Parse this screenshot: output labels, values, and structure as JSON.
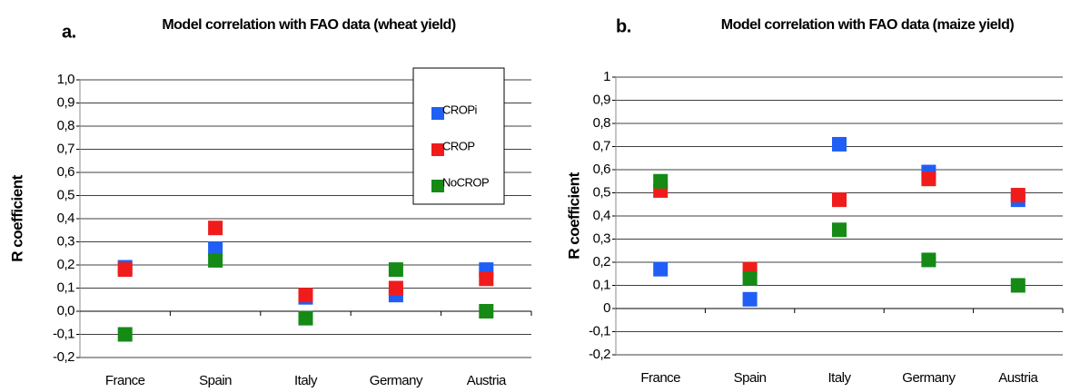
{
  "chart_data": [
    {
      "type": "scatter",
      "panel_label": "a.",
      "title": "Model correlation with FAO data (wheat yield)",
      "y_label": "R coefficient",
      "categories": [
        "France",
        "Spain",
        "Italy",
        "Germany",
        "Austria"
      ],
      "series": [
        {
          "name": "CROPi",
          "color": "#1f5ff5",
          "values": [
            0.19,
            0.27,
            0.06,
            0.07,
            0.18
          ]
        },
        {
          "name": "CROP",
          "color": "#f01c1c",
          "values": [
            0.18,
            0.36,
            0.07,
            0.1,
            0.14
          ]
        },
        {
          "name": "NoCROP",
          "color": "#158a15",
          "values": [
            -0.1,
            0.22,
            -0.03,
            0.18,
            0.0
          ]
        }
      ],
      "ylim": [
        -0.2,
        1.0
      ],
      "yticks": [
        {
          "value": -0.2,
          "label": "-0,2"
        },
        {
          "value": -0.1,
          "label": "-0,1"
        },
        {
          "value": 0,
          "label": "0,0"
        },
        {
          "value": 0.1,
          "label": "0,1"
        },
        {
          "value": 0.2,
          "label": "0,2"
        },
        {
          "value": 0.3,
          "label": "0,3"
        },
        {
          "value": 0.4,
          "label": "0,4"
        },
        {
          "value": 0.5,
          "label": "0,5"
        },
        {
          "value": 0.6,
          "label": "0,6"
        },
        {
          "value": 0.7,
          "label": "0,7"
        },
        {
          "value": 0.8,
          "label": "0,8"
        },
        {
          "value": 0.9,
          "label": "0,9"
        },
        {
          "value": 1.0,
          "label": "1,0"
        }
      ],
      "grid": true,
      "legend": "upper right"
    },
    {
      "type": "scatter",
      "panel_label": "b.",
      "title": "Model correlation with FAO data (maize yield)",
      "y_label": "R coefficient",
      "categories": [
        "France",
        "Spain",
        "Italy",
        "Germany",
        "Austria"
      ],
      "series": [
        {
          "name": "CROPi",
          "color": "#1f5ff5",
          "values": [
            0.17,
            0.04,
            0.71,
            0.59,
            0.47
          ]
        },
        {
          "name": "CROP",
          "color": "#f01c1c",
          "values": [
            0.51,
            0.17,
            0.47,
            0.56,
            0.49
          ]
        },
        {
          "name": "NoCROP",
          "color": "#158a15",
          "values": [
            0.55,
            0.13,
            0.34,
            0.21,
            0.1
          ]
        }
      ],
      "ylim": [
        -0.2,
        1
      ],
      "yticks": [
        {
          "value": -0.2,
          "label": "-0,2"
        },
        {
          "value": -0.1,
          "label": "-0,1"
        },
        0,
        {
          "value": 0.1,
          "label": "0,1"
        },
        {
          "value": 0.2,
          "label": "0,2"
        },
        {
          "value": 0.3,
          "label": "0,3"
        },
        {
          "value": 0.4,
          "label": "0,4"
        },
        {
          "value": 0.5,
          "label": "0,5"
        },
        {
          "value": 0.6,
          "label": "0,6"
        },
        {
          "value": 0.7,
          "label": "0,7"
        },
        {
          "value": 0.8,
          "label": "0,8"
        },
        {
          "value": 0.9,
          "label": "0,9"
        },
        1
      ],
      "grid": true,
      "legend": "none"
    }
  ]
}
